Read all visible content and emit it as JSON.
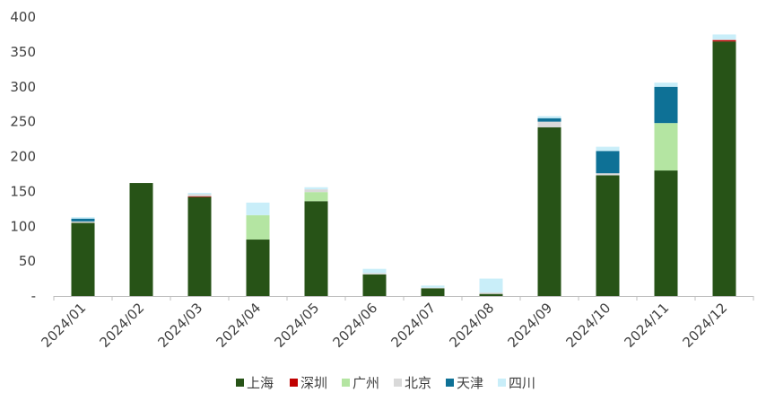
{
  "chart_data": {
    "type": "bar",
    "stacked": true,
    "categories": [
      "2024/01",
      "2024/02",
      "2024/03",
      "2024/04",
      "2024/05",
      "2024/06",
      "2024/07",
      "2024/08",
      "2024/09",
      "2024/10",
      "2024/11",
      "2024/12"
    ],
    "ylim": [
      0,
      400
    ],
    "yticks": [
      0,
      50,
      100,
      150,
      200,
      250,
      300,
      350,
      400
    ],
    "ytick_labels": [
      "-",
      "50",
      "100",
      "150",
      "200",
      "250",
      "300",
      "350",
      "400"
    ],
    "grid": false,
    "legend_position": "bottom",
    "series": [
      {
        "name": "上海",
        "color": "#275317",
        "values": [
          105,
          162,
          142,
          81,
          136,
          31,
          11,
          3,
          242,
          173,
          180,
          365
        ]
      },
      {
        "name": "深圳",
        "color": "#c00000",
        "values": [
          0,
          0,
          1,
          0,
          0,
          0,
          0,
          0,
          0,
          0,
          0,
          2
        ]
      },
      {
        "name": "广州",
        "color": "#b4e5a2",
        "values": [
          0,
          0,
          0,
          35,
          13,
          0,
          0,
          0,
          0,
          0,
          68,
          0
        ]
      },
      {
        "name": "北京",
        "color": "#d9d9d9",
        "values": [
          2,
          0,
          3,
          0,
          4,
          2,
          1,
          2,
          8,
          3,
          0,
          1
        ]
      },
      {
        "name": "天津",
        "color": "#0e7196",
        "values": [
          4,
          0,
          0,
          0,
          0,
          0,
          0,
          0,
          5,
          32,
          52,
          0
        ]
      },
      {
        "name": "四川",
        "color": "#c9eef9",
        "values": [
          2,
          0,
          2,
          18,
          3,
          6,
          3,
          20,
          3,
          6,
          6,
          7
        ]
      }
    ]
  }
}
